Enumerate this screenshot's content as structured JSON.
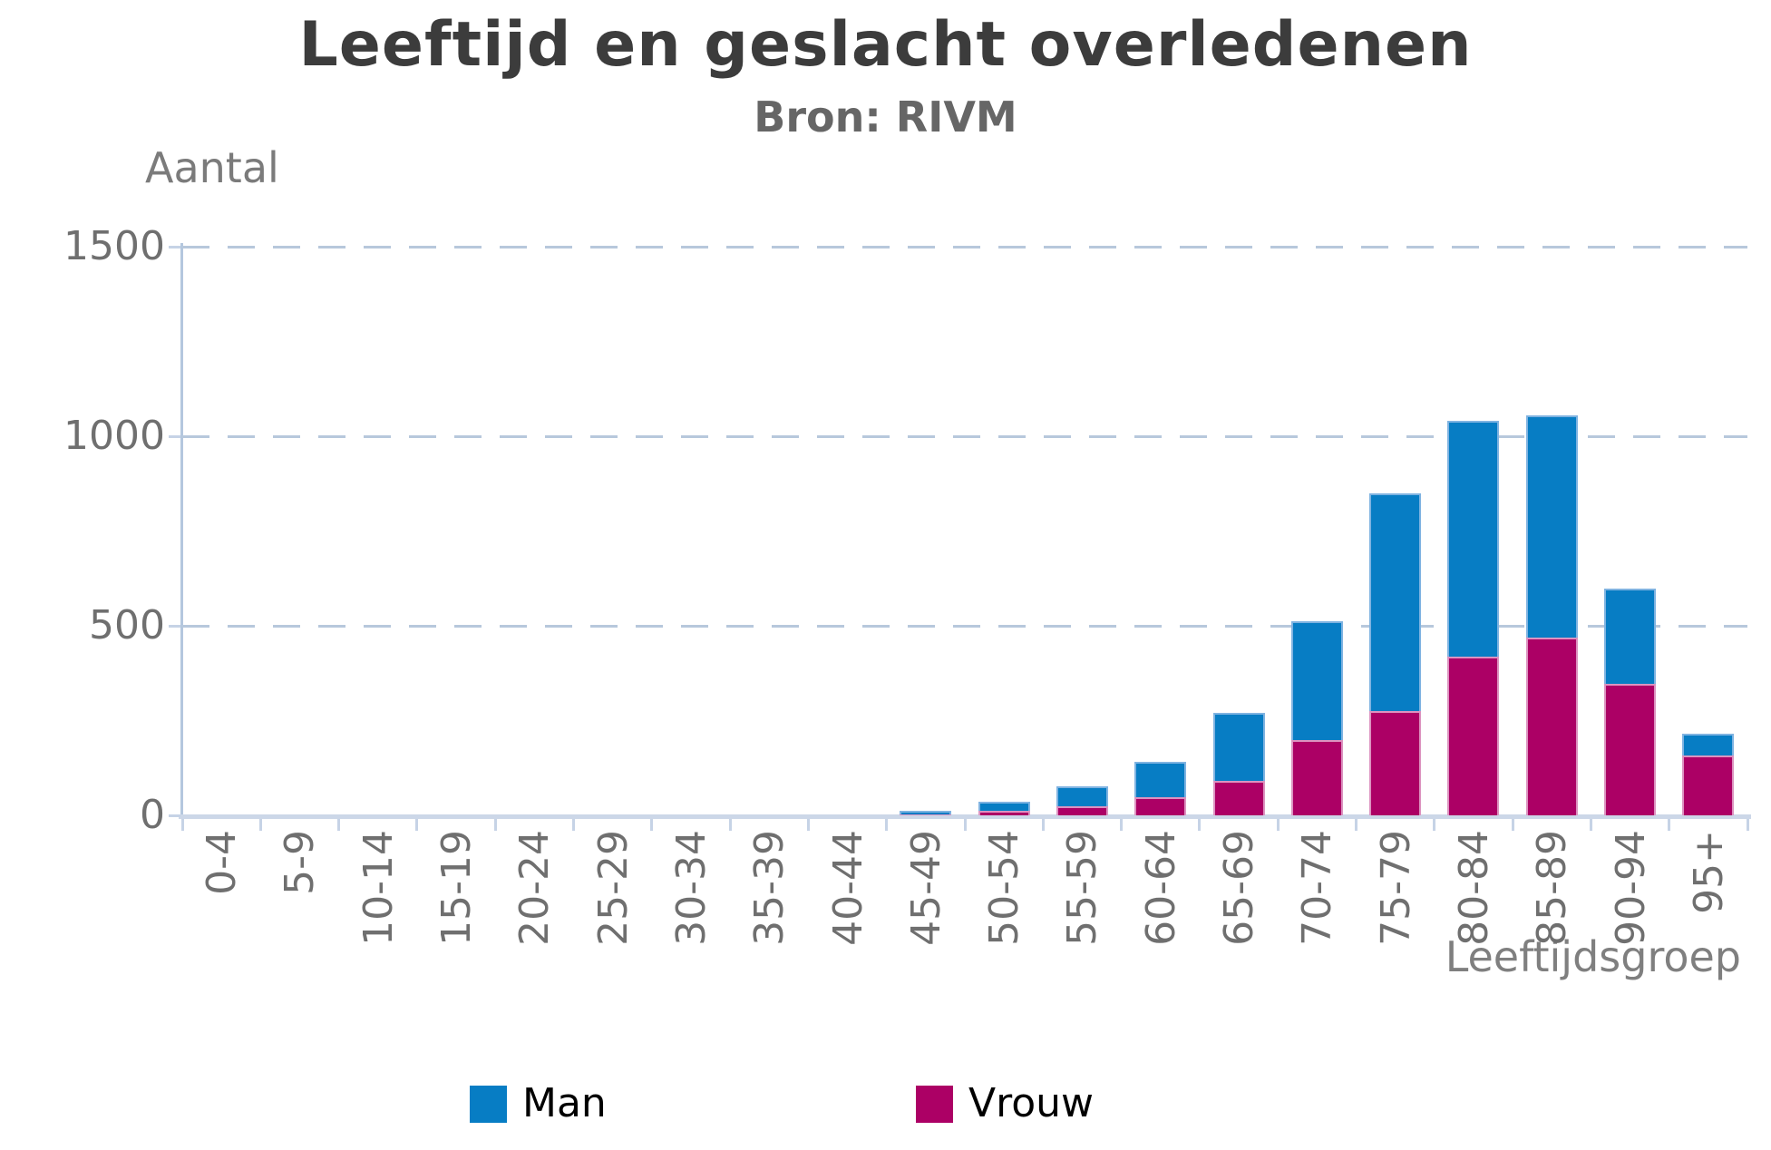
{
  "title": "Leeftijd en geslacht overledenen",
  "subtitle": "Bron: RIVM",
  "y_axis": {
    "label": "Aantal",
    "ticks": [
      0,
      500,
      1000,
      1500
    ],
    "max": 1500
  },
  "x_axis": {
    "label": "Leeftijdsgroep"
  },
  "legend": [
    {
      "label": "Man",
      "color": "#077dc4"
    },
    {
      "label": "Vrouw",
      "color": "#ac0065"
    }
  ],
  "colors": {
    "man_fill": "#077dc4",
    "man_border": "#7fb3e1",
    "vrouw_fill": "#ac0065",
    "vrouw_border": "#dc93c0",
    "gridline": "#b7c8dc",
    "axis_line": "#b4c7de",
    "title_text": "#3c3c3c",
    "subtitle_text": "#666666",
    "tick_text": "#6f6f6f",
    "axis_title_text": "#7f7f7f",
    "legend_text": "#000000"
  },
  "chart_data": {
    "type": "bar",
    "stacked": true,
    "title": "Leeftijd en geslacht overledenen",
    "subtitle": "Bron: RIVM",
    "xlabel": "Leeftijdsgroep",
    "ylabel": "Aantal",
    "ylim": [
      0,
      1500
    ],
    "grid": "dashed-horizontal",
    "legend_position": "bottom",
    "categories": [
      "0-4",
      "5-9",
      "10-14",
      "15-19",
      "20-24",
      "25-29",
      "30-34",
      "35-39",
      "40-44",
      "45-49",
      "50-54",
      "55-59",
      "60-64",
      "65-69",
      "70-74",
      "75-79",
      "80-84",
      "85-89",
      "90-94",
      "95+"
    ],
    "series": [
      {
        "name": "Man",
        "color": "#077dc4",
        "values": [
          0,
          0,
          0,
          0,
          0,
          0,
          0,
          0,
          0,
          10,
          24,
          54,
          95,
          180,
          315,
          575,
          622,
          585,
          251,
          57
        ]
      },
      {
        "name": "Vrouw",
        "color": "#ac0065",
        "values": [
          0,
          0,
          0,
          0,
          0,
          0,
          0,
          0,
          0,
          2,
          13,
          23,
          47,
          90,
          198,
          275,
          418,
          470,
          348,
          158
        ]
      }
    ]
  }
}
